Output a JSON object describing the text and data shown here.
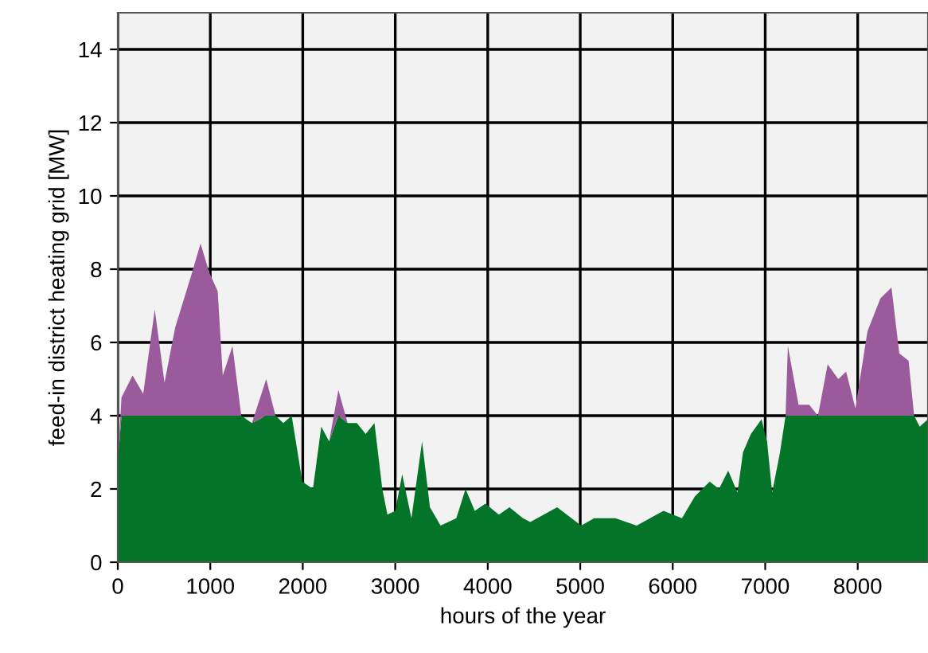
{
  "chart_data": {
    "type": "area",
    "stacked": true,
    "xlabel": "hours of the year",
    "ylabel": "feed-in district heating grid [MW]",
    "x": [
      0,
      40,
      160,
      275,
      400,
      505,
      620,
      790,
      895,
      990,
      1080,
      1135,
      1240,
      1335,
      1450,
      1605,
      1705,
      1790,
      1880,
      1995,
      2110,
      2200,
      2285,
      2385,
      2485,
      2585,
      2680,
      2775,
      2860,
      2915,
      3000,
      3075,
      3175,
      3290,
      3375,
      3490,
      3660,
      3760,
      3860,
      3975,
      4120,
      4235,
      4380,
      4460,
      4750,
      5010,
      5150,
      5380,
      5610,
      5900,
      6100,
      6240,
      6400,
      6500,
      6600,
      6700,
      6760,
      6845,
      6960,
      7020,
      7075,
      7160,
      7220,
      7245,
      7360,
      7475,
      7570,
      7675,
      7790,
      7875,
      7975,
      8105,
      8245,
      8365,
      8450,
      8550,
      8610,
      8670,
      8760
    ],
    "series": [
      {
        "color": "#037428",
        "values": [
          2.7,
          4,
          4,
          4,
          4,
          4,
          4,
          4,
          4,
          4,
          4,
          4,
          4,
          4,
          3.8,
          4,
          4,
          3.8,
          4,
          2.2,
          2,
          3.7,
          3.3,
          4,
          3.8,
          3.8,
          3.5,
          3.8,
          2,
          1.3,
          1.4,
          2.4,
          1.2,
          3.3,
          1.5,
          1,
          1.2,
          2,
          1.4,
          1.6,
          1.3,
          1.5,
          1.2,
          1.1,
          1.5,
          1,
          1.2,
          1.2,
          1,
          1.4,
          1.2,
          1.8,
          2.2,
          2,
          2.5,
          1.9,
          3,
          3.5,
          3.9,
          3.3,
          1.9,
          3,
          4,
          4,
          4,
          4,
          4,
          4,
          4,
          4,
          4,
          4,
          4,
          4,
          4,
          4,
          4,
          3.7,
          3.9
        ]
      },
      {
        "color": "#9b5a9c",
        "values": [
          0,
          0.5,
          1.1,
          0.6,
          2.9,
          0.9,
          2.4,
          3.8,
          4.7,
          3.9,
          3.4,
          1.1,
          1.9,
          0,
          0,
          1,
          0,
          0,
          0,
          0,
          0,
          0,
          0,
          0.7,
          0,
          0,
          0,
          0,
          0,
          0,
          0,
          0,
          0,
          0,
          0,
          0,
          0,
          0,
          0,
          0,
          0,
          0,
          0,
          0,
          0,
          0,
          0,
          0,
          0,
          0,
          0,
          0,
          0,
          0,
          0,
          0,
          0,
          0,
          0,
          0,
          0,
          0,
          0,
          1.9,
          0.3,
          0.3,
          0,
          1.4,
          1,
          1.2,
          0.2,
          2.3,
          3.2,
          3.5,
          1.7,
          1.5,
          0,
          0,
          0
        ]
      }
    ],
    "xlim": [
      0,
      8760
    ],
    "xticks": [
      0,
      1000,
      2000,
      3000,
      4000,
      5000,
      6000,
      7000,
      8000
    ],
    "ylim": [
      0,
      15
    ],
    "yticks": [
      0,
      2,
      4,
      6,
      8,
      10,
      12,
      14
    ],
    "grid": true
  }
}
